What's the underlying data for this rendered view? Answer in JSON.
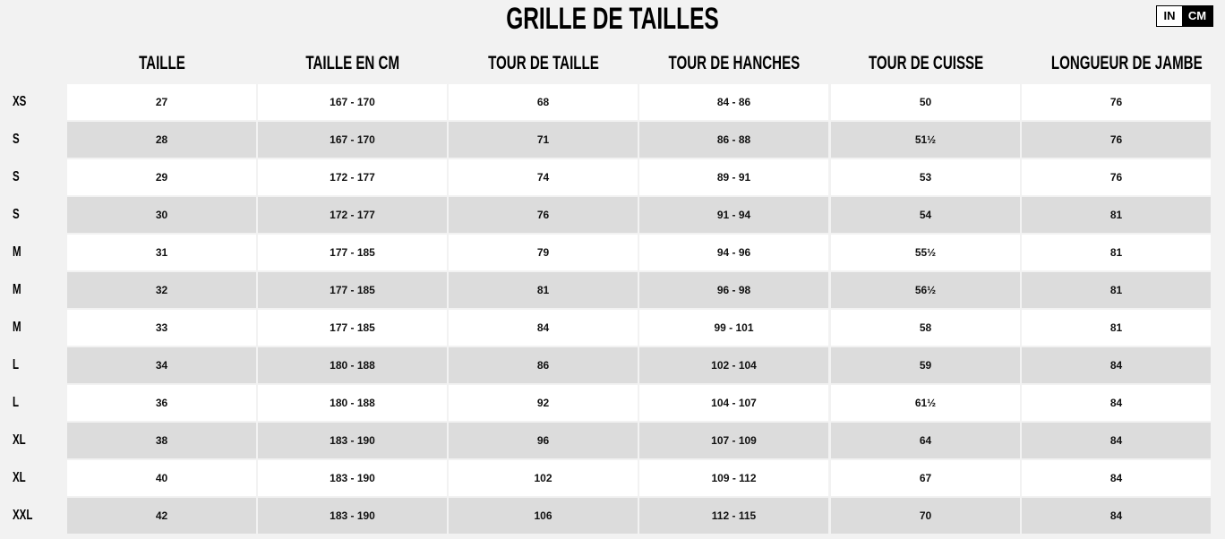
{
  "title": "GRILLE DE TAILLES",
  "unit_toggle": {
    "options": [
      "IN",
      "CM"
    ],
    "selected": "CM"
  },
  "columns": [
    "TAILLE",
    "TAILLE EN CM",
    "TOUR DE TAILLE",
    "TOUR DE HANCHES",
    "TOUR DE CUISSE",
    "LONGUEUR DE JAMBE"
  ],
  "rows": [
    {
      "size": "XS",
      "values": [
        "27",
        "167 - 170",
        "68",
        "84 - 86",
        "50",
        "76"
      ]
    },
    {
      "size": "S",
      "values": [
        "28",
        "167 - 170",
        "71",
        "86 - 88",
        "51½",
        "76"
      ]
    },
    {
      "size": "S",
      "values": [
        "29",
        "172 - 177",
        "74",
        "89 - 91",
        "53",
        "76"
      ]
    },
    {
      "size": "S",
      "values": [
        "30",
        "172 - 177",
        "76",
        "91 - 94",
        "54",
        "81"
      ]
    },
    {
      "size": "M",
      "values": [
        "31",
        "177 - 185",
        "79",
        "94 - 96",
        "55½",
        "81"
      ]
    },
    {
      "size": "M",
      "values": [
        "32",
        "177 - 185",
        "81",
        "96 - 98",
        "56½",
        "81"
      ]
    },
    {
      "size": "M",
      "values": [
        "33",
        "177 - 185",
        "84",
        "99 - 101",
        "58",
        "81"
      ]
    },
    {
      "size": "L",
      "values": [
        "34",
        "180 - 188",
        "86",
        "102 - 104",
        "59",
        "84"
      ]
    },
    {
      "size": "L",
      "values": [
        "36",
        "180 - 188",
        "92",
        "104 - 107",
        "61½",
        "84"
      ]
    },
    {
      "size": "XL",
      "values": [
        "38",
        "183 - 190",
        "96",
        "107 - 109",
        "64",
        "84"
      ]
    },
    {
      "size": "XL",
      "values": [
        "40",
        "183 - 190",
        "102",
        "109 - 112",
        "67",
        "84"
      ]
    },
    {
      "size": "XXL",
      "values": [
        "42",
        "183 - 190",
        "106",
        "112 - 115",
        "70",
        "84"
      ]
    }
  ]
}
